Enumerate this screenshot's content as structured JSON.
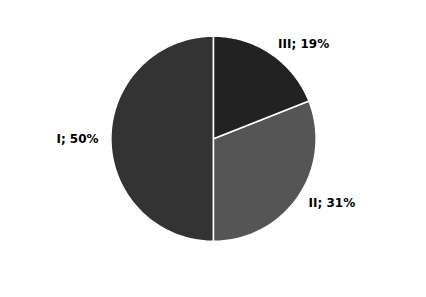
{
  "chart_data": {
    "type": "pie",
    "categories": [
      "I",
      "II",
      "III"
    ],
    "values": [
      50,
      31,
      19
    ],
    "value_labels": [
      "I; 50%",
      "II; 31%",
      "III; 19%"
    ],
    "colors": [
      "#333333",
      "#555555",
      "#222222"
    ],
    "data_labels": true
  }
}
